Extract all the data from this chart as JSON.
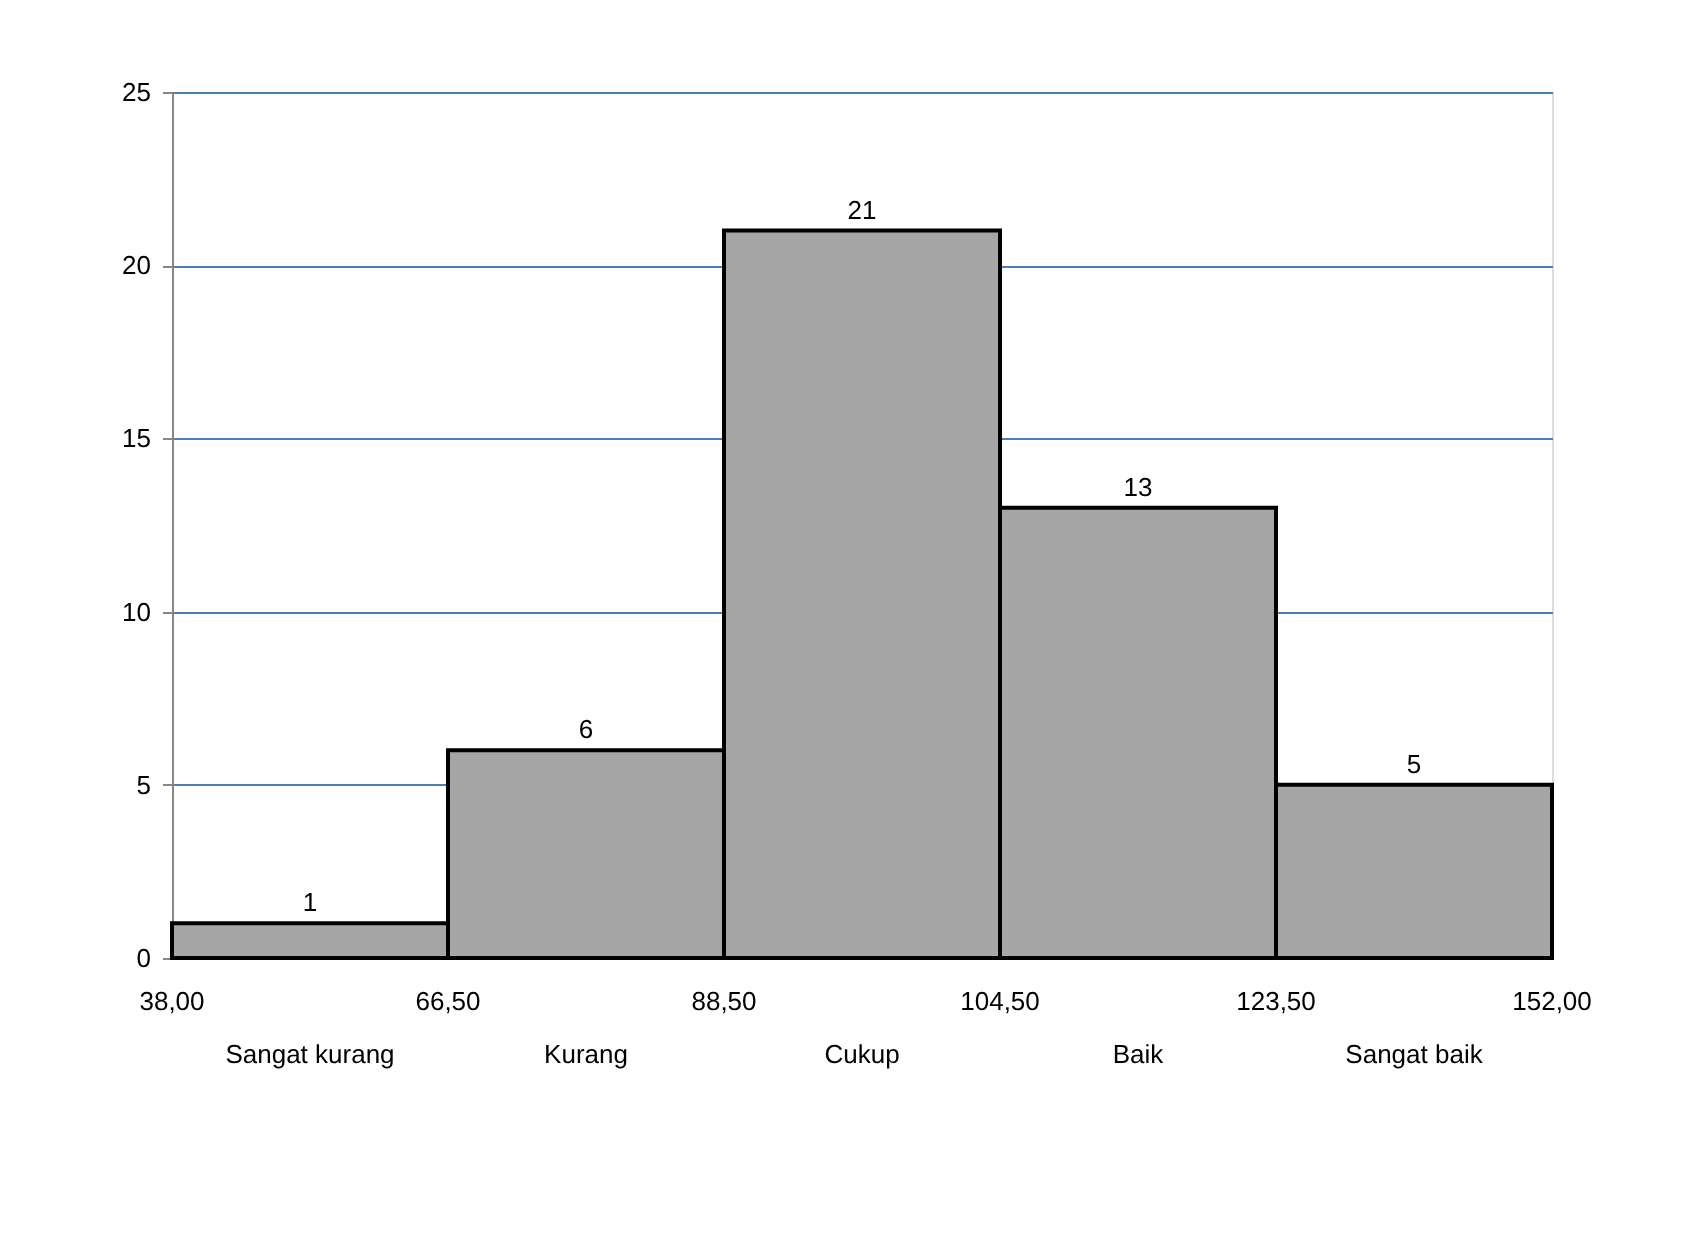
{
  "chart_data": {
    "type": "bar",
    "categories": [
      "Sangat kurang",
      "Kurang",
      "Cukup",
      "Baik",
      "Sangat baik"
    ],
    "values": [
      1,
      6,
      21,
      13,
      5
    ],
    "color": "#a6a6a6",
    "ylim": [
      0,
      25
    ],
    "yticks": [
      0,
      5,
      10,
      15,
      20,
      25
    ],
    "grid": "y",
    "data_labels": true,
    "annotations": [
      "38,00",
      "66,50",
      "88,50",
      "104,50",
      "123,50",
      "152,00"
    ]
  }
}
